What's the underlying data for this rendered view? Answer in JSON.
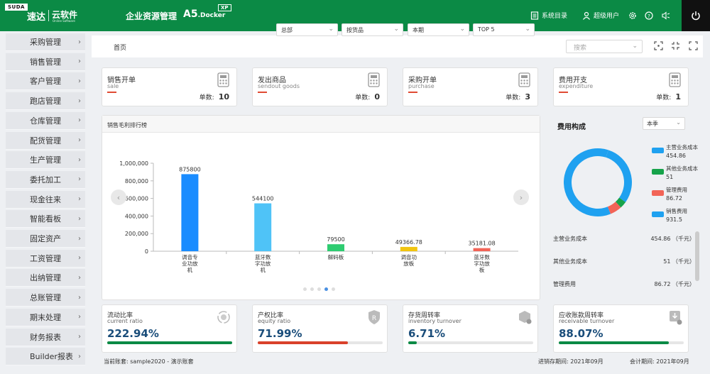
{
  "brand": {
    "badge": "SUDA",
    "name": "速达",
    "product_cn": "云软件",
    "product_en": "Online Software"
  },
  "header": {
    "app_title": "企业资源管理",
    "product": "A5",
    "product_suffix": ".Docker",
    "badge": "XP",
    "catalog_label": "系统目录",
    "user_label": "超级用户"
  },
  "sidebar": {
    "items": [
      {
        "label": "采购管理"
      },
      {
        "label": "销售管理"
      },
      {
        "label": "客户管理"
      },
      {
        "label": "跑店管理"
      },
      {
        "label": "仓库管理"
      },
      {
        "label": "配货管理"
      },
      {
        "label": "生产管理"
      },
      {
        "label": "委托加工"
      },
      {
        "label": "现金往来"
      },
      {
        "label": "智能看板"
      },
      {
        "label": "固定资产"
      },
      {
        "label": "工资管理"
      },
      {
        "label": "出纳管理"
      },
      {
        "label": "总账管理"
      },
      {
        "label": "期末处理"
      },
      {
        "label": "财务报表"
      },
      {
        "label": "Builder报表"
      }
    ]
  },
  "tabs": {
    "home": "首页"
  },
  "search": {
    "placeholder": "搜索"
  },
  "kpis": [
    {
      "title": "销售开单",
      "subtitle": "sale",
      "count_label": "单数:",
      "count": "10",
      "icon": "calculator-icon"
    },
    {
      "title": "发出商品",
      "subtitle": "sendout goods",
      "count_label": "单数:",
      "count": "0",
      "icon": "calculator-icon"
    },
    {
      "title": "采购开单",
      "subtitle": "purchase",
      "count_label": "单数:",
      "count": "3",
      "icon": "calculator-icon"
    },
    {
      "title": "费用开支",
      "subtitle": "expenditure",
      "count_label": "单数:",
      "count": "1",
      "icon": "calculator-icon"
    }
  ],
  "ranking": {
    "title": "销售毛利排行榜",
    "filters": [
      "总部",
      "按货品",
      "本期",
      "TOP 5"
    ]
  },
  "chart_data": {
    "type": "bar",
    "title": "",
    "categories": [
      "调音专业功放机",
      "蓝牙数字功放机",
      "解码板",
      "调音功放板",
      "蓝牙数字功放板"
    ],
    "category_lines": [
      [
        "调音专",
        "业功放",
        "机"
      ],
      [
        "蓝牙数",
        "字功放",
        "机"
      ],
      [
        "解码板"
      ],
      [
        "调音功",
        "放板"
      ],
      [
        "蓝牙数",
        "字功放",
        "板"
      ]
    ],
    "values": [
      875800,
      544100,
      79500,
      49366.78,
      35181.08
    ],
    "value_labels": [
      "875800",
      "544100",
      "79500",
      "49366.78",
      "35181.08"
    ],
    "colors": [
      "#1a8cff",
      "#4fc3f7",
      "#2ecc71",
      "#f1c40f",
      "#f26457"
    ],
    "ylim": [
      0,
      1000000
    ],
    "yticks": [
      0,
      200000,
      400000,
      600000,
      800000,
      1000000
    ],
    "ytick_labels": [
      "0",
      "200,000",
      "400,000",
      "600,000",
      "800,000",
      "1,000,000"
    ],
    "grid": false,
    "carousel_pages": 5,
    "carousel_active": 3
  },
  "cost": {
    "title": "费用构成",
    "period": "本季",
    "legend": [
      {
        "name": "主营业务成本",
        "value": "454.86",
        "color": "#1fa1f0"
      },
      {
        "name": "其他业务成本",
        "value": "51",
        "color": "#16a34a"
      },
      {
        "name": "管理费用",
        "value": "86.72",
        "color": "#f26457"
      },
      {
        "name": "销售费用",
        "value": "931.5",
        "color": "#1fa1f0"
      }
    ],
    "donut_values": [
      454.86,
      51,
      86.72,
      931.5
    ],
    "donut_colors": [
      "#1fa1f0",
      "#16a34a",
      "#f26457",
      "#1fa1f0"
    ],
    "rows": [
      {
        "name": "主营业务成本",
        "value": "454.86 （千元）"
      },
      {
        "name": "其他业务成本",
        "value": "51 （千元）"
      },
      {
        "name": "管理费用",
        "value": "86.72 （千元）"
      }
    ]
  },
  "ratios": [
    {
      "title": "流动比率",
      "subtitle": "current ratio",
      "value": "222.94%",
      "fill": 1.0,
      "color": "#0b8a45",
      "icon": "refresh-coin-icon"
    },
    {
      "title": "产权比率",
      "subtitle": "equity ratio",
      "value": "71.99%",
      "fill": 0.72,
      "color": "#d9412b",
      "icon": "shield-r-icon"
    },
    {
      "title": "存货周转率",
      "subtitle": "inventory turnover",
      "value": "6.71%",
      "fill": 0.07,
      "color": "#0b8a45",
      "icon": "box-gear-icon"
    },
    {
      "title": "应收账款周转率",
      "subtitle": "receivable turnover",
      "value": "88.07%",
      "fill": 0.88,
      "color": "#0b8a45",
      "icon": "download-gear-icon"
    }
  ],
  "footer": {
    "account": "当前账套: sample2020 - 演示账套",
    "stock_period": "进销存期间: 2021年09月",
    "account_period": "会计期间: 2021年09月"
  }
}
